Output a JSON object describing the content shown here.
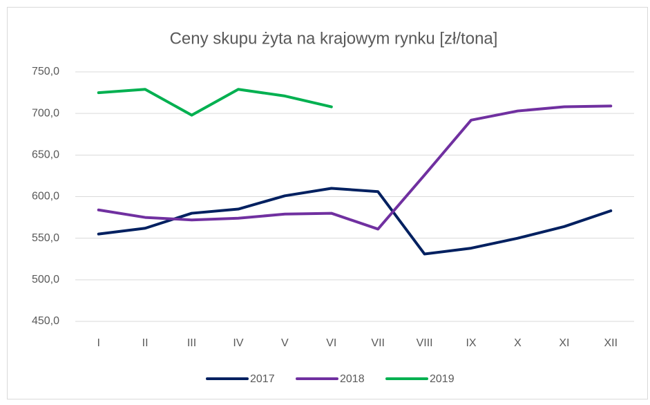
{
  "chart_data": {
    "type": "line",
    "title": "Ceny skupu żyta na krajowym rynku [zł/tona]",
    "categories": [
      "I",
      "II",
      "III",
      "IV",
      "V",
      "VI",
      "VII",
      "VIII",
      "IX",
      "X",
      "XI",
      "XII"
    ],
    "series": [
      {
        "name": "2017",
        "color": "#002060",
        "values": [
          555,
          562,
          580,
          585,
          601,
          610,
          606,
          531,
          538,
          550,
          564,
          583
        ]
      },
      {
        "name": "2018",
        "color": "#7030a0",
        "values": [
          584,
          575,
          572,
          574,
          579,
          580,
          561,
          626,
          692,
          703,
          708,
          709
        ]
      },
      {
        "name": "2019",
        "color": "#00b050",
        "values": [
          725,
          729,
          698,
          729,
          721,
          708,
          null,
          null,
          null,
          null,
          null,
          null
        ]
      }
    ],
    "ylim": [
      450,
      750
    ],
    "yticks": [
      {
        "value": 450,
        "label": "450,0"
      },
      {
        "value": 500,
        "label": "500,0"
      },
      {
        "value": 550,
        "label": "550,0"
      },
      {
        "value": 600,
        "label": "600,0"
      },
      {
        "value": 650,
        "label": "650,0"
      },
      {
        "value": 700,
        "label": "700,0"
      },
      {
        "value": 750,
        "label": "750,0"
      }
    ],
    "grid": true,
    "legend": "bottom"
  }
}
